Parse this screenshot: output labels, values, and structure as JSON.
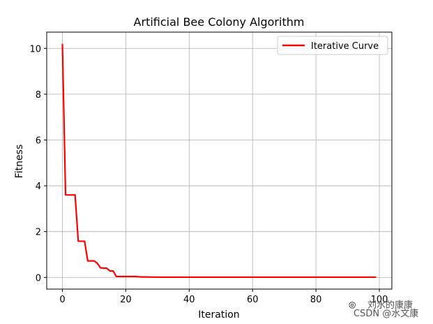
{
  "chart_data": {
    "type": "line",
    "title": "Artificial Bee Colony Algorithm",
    "xlabel": "Iteration",
    "ylabel": "Fitness",
    "xlim": [
      -4.95,
      103.95
    ],
    "ylim": [
      -0.51,
      10.71
    ],
    "xticks": [
      0,
      20,
      40,
      60,
      80,
      100
    ],
    "yticks": [
      0,
      2,
      4,
      6,
      8,
      10
    ],
    "xtick_labels": [
      "0",
      "20",
      "40",
      "60",
      "80",
      "100"
    ],
    "ytick_labels": [
      "0",
      "2",
      "4",
      "6",
      "8",
      "10"
    ],
    "grid": true,
    "legend_position": "top-right",
    "series": [
      {
        "name": "Iterative Curve",
        "color": "#ff0000",
        "x": [
          0,
          1,
          2,
          3,
          4,
          5,
          6,
          7,
          8,
          9,
          10,
          11,
          12,
          13,
          14,
          15,
          16,
          17,
          18,
          19,
          20,
          21,
          22,
          23,
          24,
          25,
          26,
          30,
          40,
          50,
          60,
          70,
          80,
          90,
          99
        ],
        "y": [
          10.2,
          3.6,
          3.6,
          3.6,
          3.6,
          1.58,
          1.58,
          1.58,
          0.72,
          0.72,
          0.72,
          0.62,
          0.42,
          0.4,
          0.4,
          0.28,
          0.28,
          0.04,
          0.04,
          0.04,
          0.04,
          0.04,
          0.04,
          0.04,
          0.03,
          0.02,
          0.02,
          0.01,
          0.01,
          0.01,
          0.01,
          0.01,
          0.01,
          0.01,
          0.01
        ]
      }
    ]
  },
  "watermark": {
    "line1": "刘水的康康",
    "line2": "CSDN @水文康"
  }
}
